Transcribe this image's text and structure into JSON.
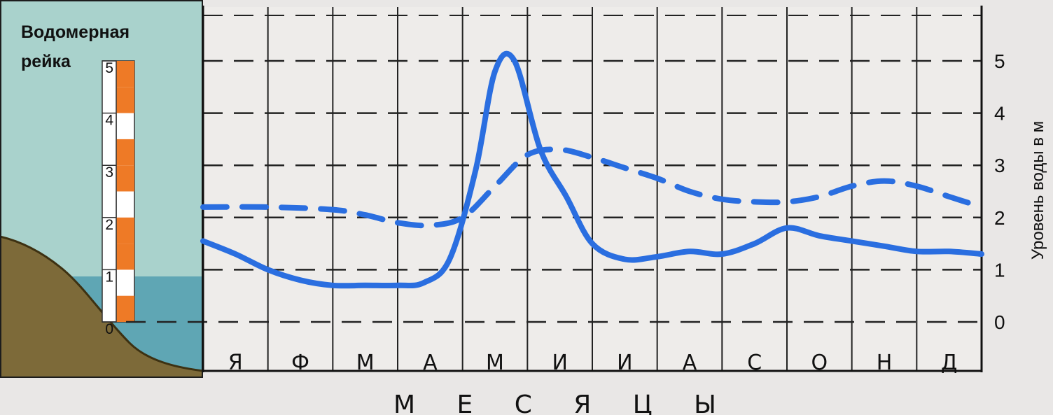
{
  "chart_data": {
    "type": "line",
    "title": "",
    "xlabel": "М Е С Я Ц Ы",
    "ylabel": "Уровень воды в м",
    "categories": [
      "Я",
      "Ф",
      "М",
      "А",
      "М",
      "И",
      "И",
      "А",
      "С",
      "О",
      "Н",
      "Д"
    ],
    "ylim": [
      0,
      5
    ],
    "yticks": [
      0,
      1,
      2,
      3,
      4,
      5
    ],
    "grid": true,
    "series": [
      {
        "style": "solid",
        "color": "#2a6ee0",
        "x": [
          0,
          0.5,
          1,
          1.5,
          2,
          2.5,
          3,
          3.4,
          3.8,
          4.2,
          4.5,
          4.8,
          5.2,
          5.6,
          6,
          6.5,
          7,
          7.5,
          8,
          8.5,
          9,
          9.5,
          10,
          10.5,
          11,
          11.5,
          12
        ],
        "values": [
          1.55,
          1.3,
          1.0,
          0.8,
          0.7,
          0.7,
          0.7,
          0.75,
          1.2,
          2.9,
          4.8,
          5.0,
          3.3,
          2.4,
          1.5,
          1.2,
          1.25,
          1.35,
          1.3,
          1.5,
          1.8,
          1.65,
          1.55,
          1.45,
          1.35,
          1.35,
          1.3
        ]
      },
      {
        "style": "dashed",
        "color": "#2a6ee0",
        "x": [
          0,
          1,
          2,
          2.5,
          3,
          3.5,
          4,
          4.5,
          5,
          5.5,
          6,
          6.5,
          7,
          7.5,
          8,
          8.5,
          9,
          9.5,
          10,
          10.5,
          11,
          11.5,
          12
        ],
        "values": [
          2.2,
          2.2,
          2.15,
          2.05,
          1.9,
          1.85,
          2.0,
          2.6,
          3.2,
          3.3,
          3.15,
          2.95,
          2.75,
          2.5,
          2.35,
          2.3,
          2.3,
          2.4,
          2.6,
          2.7,
          2.6,
          2.4,
          2.2
        ]
      }
    ]
  },
  "gauge": {
    "title_line1": "Водомерная",
    "title_line2": "рейка",
    "marks": [
      "5",
      "4",
      "3",
      "2",
      "1",
      "0"
    ]
  }
}
